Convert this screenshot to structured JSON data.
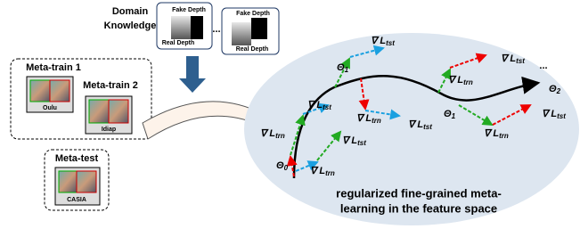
{
  "domain": {
    "title": [
      "Domain",
      "Knowledge"
    ],
    "card1": {
      "fake": "Fake Depth",
      "real": "Real Depth"
    },
    "ellipsis": "...",
    "card2": {
      "fake": "Fake Depth",
      "real": "Real Depth"
    }
  },
  "meta_train": {
    "title1": "Meta-train 1",
    "dataset1": "Oulu",
    "title2": "Meta-train 2",
    "dataset2": "Idiap"
  },
  "meta_test": {
    "title": "Meta-test",
    "dataset": "CASIA"
  },
  "feature_space": {
    "labels": [
      {
        "symbol": "∇ L",
        "sub": "tst"
      },
      {
        "symbol": "∇ L",
        "sub": "trn"
      },
      {
        "symbol": "∇ L",
        "sub": "tst"
      },
      {
        "symbol": "∇ L",
        "sub": "trn"
      },
      {
        "symbol": "∇ L",
        "sub": "tst"
      },
      {
        "symbol": "∇ L",
        "sub": "trn"
      },
      {
        "symbol": "∇ L",
        "sub": "tst"
      },
      {
        "symbol": "∇ L",
        "sub": "trn"
      },
      {
        "symbol": "∇ L",
        "sub": "tst"
      },
      {
        "symbol": "∇ L",
        "sub": "trn"
      },
      {
        "symbol": "∇ L",
        "sub": "tst"
      },
      {
        "symbol": "Θ",
        "sub": "0"
      },
      {
        "symbol": "Θ",
        "sub": "1"
      },
      {
        "symbol": "Θ",
        "sub": "1"
      },
      {
        "symbol": "Θ",
        "sub": "2"
      }
    ],
    "ellipsis": "...",
    "caption": [
      "regularized fine-grained meta-",
      "learning in the feature space"
    ]
  }
}
